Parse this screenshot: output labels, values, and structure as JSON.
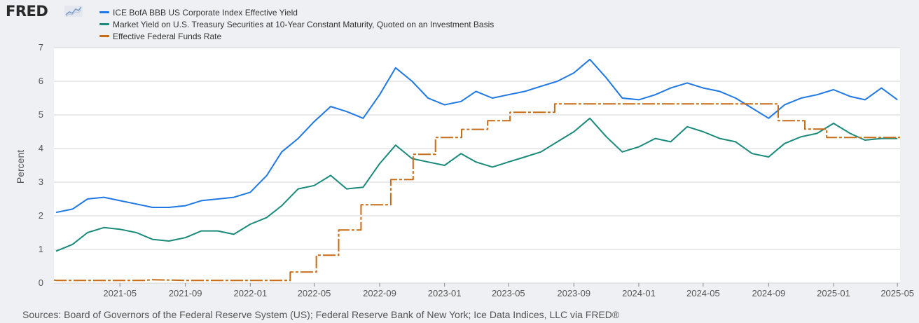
{
  "brand": {
    "logo_text": "FRED",
    "logo_icon": "line-chart-icon"
  },
  "chart_data": {
    "type": "line",
    "title": "",
    "xlabel": "",
    "ylabel": "Percent",
    "ylim": [
      0,
      7
    ],
    "yticks": [
      0,
      1,
      2,
      3,
      4,
      5,
      6,
      7
    ],
    "xlim": [
      "2020-12-28",
      "2025-05-06"
    ],
    "xticks": [
      "2021-05",
      "2021-09",
      "2022-01",
      "2022-05",
      "2022-09",
      "2023-01",
      "2023-05",
      "2023-09",
      "2024-01",
      "2024-05",
      "2024-09",
      "2025-01",
      "2025-05"
    ],
    "grid": "horizontal",
    "legend_position": "top-left",
    "series": [
      {
        "name": "ICE BofA BBB US Corporate Index Effective Yield",
        "color": "#1f78e4",
        "style": "solid",
        "points": [
          [
            "2021-01-01",
            2.1
          ],
          [
            "2021-02-01",
            2.2
          ],
          [
            "2021-03-01",
            2.5
          ],
          [
            "2021-04-01",
            2.55
          ],
          [
            "2021-05-01",
            2.45
          ],
          [
            "2021-06-01",
            2.35
          ],
          [
            "2021-07-01",
            2.25
          ],
          [
            "2021-08-01",
            2.25
          ],
          [
            "2021-09-01",
            2.3
          ],
          [
            "2021-10-01",
            2.45
          ],
          [
            "2021-11-01",
            2.5
          ],
          [
            "2021-12-01",
            2.55
          ],
          [
            "2022-01-01",
            2.7
          ],
          [
            "2022-02-01",
            3.2
          ],
          [
            "2022-03-01",
            3.9
          ],
          [
            "2022-04-01",
            4.3
          ],
          [
            "2022-05-01",
            4.8
          ],
          [
            "2022-06-01",
            5.25
          ],
          [
            "2022-07-01",
            5.1
          ],
          [
            "2022-08-01",
            4.9
          ],
          [
            "2022-09-01",
            5.6
          ],
          [
            "2022-10-01",
            6.4
          ],
          [
            "2022-11-01",
            6.0
          ],
          [
            "2022-12-01",
            5.5
          ],
          [
            "2023-01-01",
            5.3
          ],
          [
            "2023-02-01",
            5.4
          ],
          [
            "2023-03-01",
            5.7
          ],
          [
            "2023-04-01",
            5.5
          ],
          [
            "2023-05-01",
            5.6
          ],
          [
            "2023-06-01",
            5.7
          ],
          [
            "2023-07-01",
            5.85
          ],
          [
            "2023-08-01",
            6.0
          ],
          [
            "2023-09-01",
            6.25
          ],
          [
            "2023-10-01",
            6.65
          ],
          [
            "2023-11-01",
            6.1
          ],
          [
            "2023-12-01",
            5.5
          ],
          [
            "2024-01-01",
            5.45
          ],
          [
            "2024-02-01",
            5.6
          ],
          [
            "2024-03-01",
            5.8
          ],
          [
            "2024-04-01",
            5.95
          ],
          [
            "2024-05-01",
            5.8
          ],
          [
            "2024-06-01",
            5.7
          ],
          [
            "2024-07-01",
            5.5
          ],
          [
            "2024-08-01",
            5.2
          ],
          [
            "2024-09-01",
            4.9
          ],
          [
            "2024-10-01",
            5.3
          ],
          [
            "2024-11-01",
            5.5
          ],
          [
            "2024-12-01",
            5.6
          ],
          [
            "2025-01-01",
            5.75
          ],
          [
            "2025-02-01",
            5.55
          ],
          [
            "2025-03-01",
            5.45
          ],
          [
            "2025-04-01",
            5.8
          ],
          [
            "2025-05-01",
            5.45
          ]
        ]
      },
      {
        "name": "Market Yield on U.S. Treasury Securities at 10-Year Constant Maturity, Quoted on an Investment Basis",
        "color": "#1a8a7a",
        "style": "solid",
        "points": [
          [
            "2021-01-01",
            0.95
          ],
          [
            "2021-02-01",
            1.15
          ],
          [
            "2021-03-01",
            1.5
          ],
          [
            "2021-04-01",
            1.65
          ],
          [
            "2021-05-01",
            1.6
          ],
          [
            "2021-06-01",
            1.5
          ],
          [
            "2021-07-01",
            1.3
          ],
          [
            "2021-08-01",
            1.25
          ],
          [
            "2021-09-01",
            1.35
          ],
          [
            "2021-10-01",
            1.55
          ],
          [
            "2021-11-01",
            1.55
          ],
          [
            "2021-12-01",
            1.45
          ],
          [
            "2022-01-01",
            1.75
          ],
          [
            "2022-02-01",
            1.95
          ],
          [
            "2022-03-01",
            2.3
          ],
          [
            "2022-04-01",
            2.8
          ],
          [
            "2022-05-01",
            2.9
          ],
          [
            "2022-06-01",
            3.2
          ],
          [
            "2022-07-01",
            2.8
          ],
          [
            "2022-08-01",
            2.85
          ],
          [
            "2022-09-01",
            3.55
          ],
          [
            "2022-10-01",
            4.1
          ],
          [
            "2022-11-01",
            3.7
          ],
          [
            "2022-12-01",
            3.6
          ],
          [
            "2023-01-01",
            3.5
          ],
          [
            "2023-02-01",
            3.85
          ],
          [
            "2023-03-01",
            3.6
          ],
          [
            "2023-04-01",
            3.45
          ],
          [
            "2023-05-01",
            3.6
          ],
          [
            "2023-06-01",
            3.75
          ],
          [
            "2023-07-01",
            3.9
          ],
          [
            "2023-08-01",
            4.2
          ],
          [
            "2023-09-01",
            4.5
          ],
          [
            "2023-10-01",
            4.9
          ],
          [
            "2023-11-01",
            4.35
          ],
          [
            "2023-12-01",
            3.9
          ],
          [
            "2024-01-01",
            4.05
          ],
          [
            "2024-02-01",
            4.3
          ],
          [
            "2024-03-01",
            4.2
          ],
          [
            "2024-04-01",
            4.65
          ],
          [
            "2024-05-01",
            4.5
          ],
          [
            "2024-06-01",
            4.3
          ],
          [
            "2024-07-01",
            4.2
          ],
          [
            "2024-08-01",
            3.85
          ],
          [
            "2024-09-01",
            3.75
          ],
          [
            "2024-10-01",
            4.15
          ],
          [
            "2024-11-01",
            4.35
          ],
          [
            "2024-12-01",
            4.45
          ],
          [
            "2025-01-01",
            4.75
          ],
          [
            "2025-02-01",
            4.45
          ],
          [
            "2025-03-01",
            4.25
          ],
          [
            "2025-04-01",
            4.3
          ],
          [
            "2025-05-01",
            4.3
          ]
        ]
      },
      {
        "name": "Effective Federal Funds Rate",
        "color": "#c76b16",
        "style": "dashed",
        "points": [
          [
            "2020-12-28",
            0.09
          ],
          [
            "2021-01-01",
            0.08
          ],
          [
            "2021-06-15",
            0.08
          ],
          [
            "2021-07-01",
            0.1
          ],
          [
            "2021-09-01",
            0.08
          ],
          [
            "2022-03-17",
            0.08
          ],
          [
            "2022-03-17",
            0.33
          ],
          [
            "2022-05-05",
            0.33
          ],
          [
            "2022-05-05",
            0.83
          ],
          [
            "2022-06-16",
            0.83
          ],
          [
            "2022-06-16",
            1.58
          ],
          [
            "2022-07-28",
            1.58
          ],
          [
            "2022-07-28",
            2.33
          ],
          [
            "2022-09-22",
            2.33
          ],
          [
            "2022-09-22",
            3.08
          ],
          [
            "2022-11-03",
            3.08
          ],
          [
            "2022-11-03",
            3.83
          ],
          [
            "2022-12-15",
            3.83
          ],
          [
            "2022-12-15",
            4.33
          ],
          [
            "2023-02-02",
            4.33
          ],
          [
            "2023-02-02",
            4.57
          ],
          [
            "2023-03-23",
            4.57
          ],
          [
            "2023-03-23",
            4.83
          ],
          [
            "2023-05-04",
            4.83
          ],
          [
            "2023-05-04",
            5.08
          ],
          [
            "2023-07-27",
            5.08
          ],
          [
            "2023-07-27",
            5.33
          ],
          [
            "2024-09-19",
            5.33
          ],
          [
            "2024-09-19",
            4.83
          ],
          [
            "2024-11-08",
            4.83
          ],
          [
            "2024-11-08",
            4.58
          ],
          [
            "2024-12-19",
            4.58
          ],
          [
            "2024-12-19",
            4.33
          ],
          [
            "2025-05-06",
            4.33
          ]
        ]
      }
    ]
  },
  "footer": {
    "sources": "Sources: Board of Governors of the Federal Reserve System (US); Federal Reserve Bank of New York; Ice Data Indices, LLC via FRED®"
  }
}
